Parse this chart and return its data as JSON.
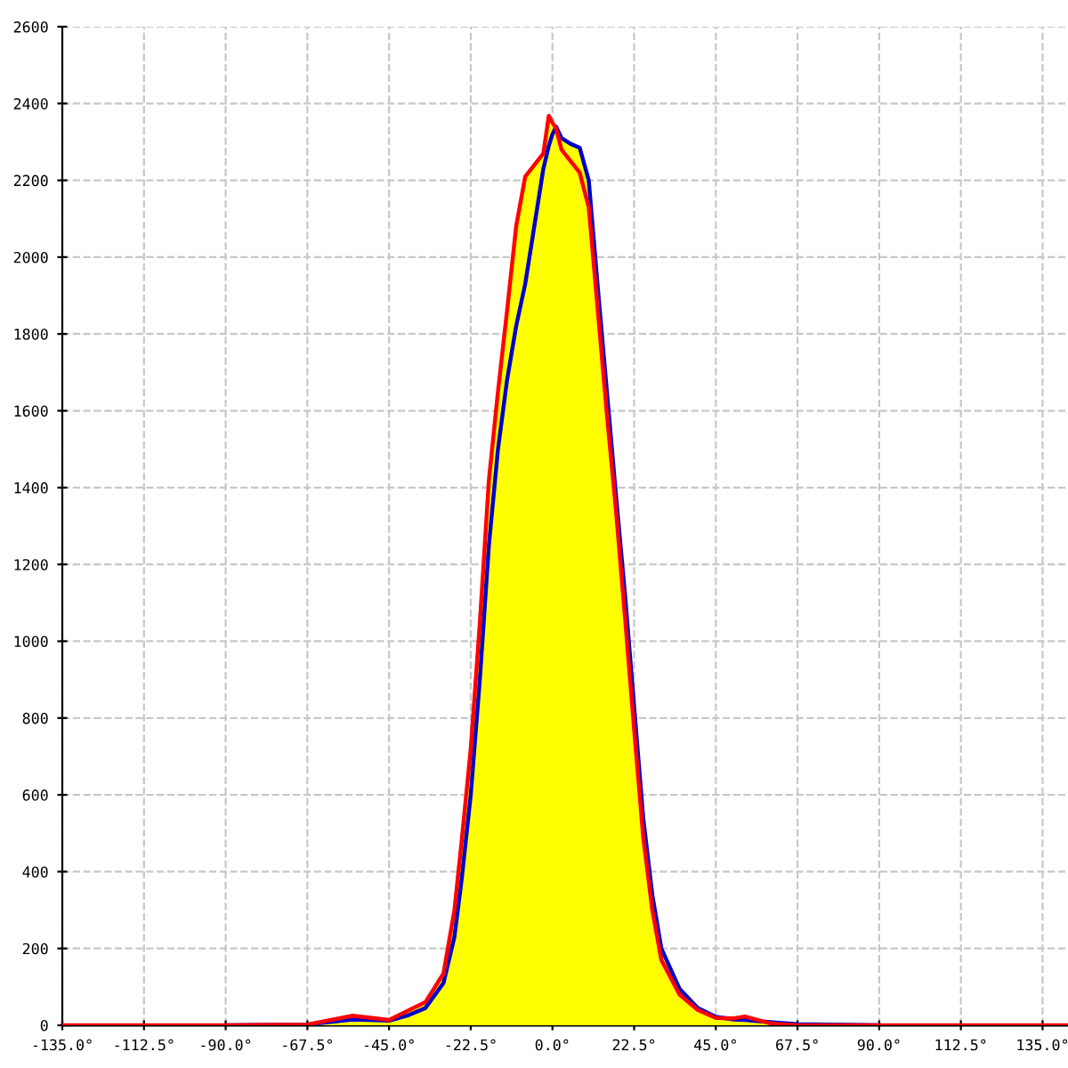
{
  "chart_data": {
    "type": "line",
    "x": [
      -90,
      -67.5,
      -55,
      -45,
      -40,
      -35,
      -30,
      -27,
      -25,
      -22.5,
      -20,
      -17.5,
      -15,
      -12.5,
      -10,
      -7.5,
      -5,
      -2.5,
      -1,
      0,
      1,
      2.5,
      5,
      7.5,
      10,
      12.5,
      15,
      17.5,
      20,
      22.5,
      25,
      27.5,
      30,
      35,
      40,
      45,
      50,
      53,
      60,
      67.5,
      90
    ],
    "series": [
      {
        "type": "area",
        "color": "#ffff00",
        "values": [
          0,
          2,
          25,
          14,
          37,
          60,
          135,
          300,
          480,
          720,
          1047,
          1420,
          1650,
          1860,
          2080,
          2210,
          2240,
          2270,
          2368,
          2350,
          2340,
          2310,
          2295,
          2285,
          2200,
          1920,
          1650,
          1380,
          1120,
          830,
          540,
          340,
          200,
          95,
          45,
          22,
          18,
          23,
          8,
          3,
          0
        ]
      },
      {
        "type": "line",
        "color": "#0000cc",
        "values": [
          0,
          2,
          15,
          12,
          25,
          45,
          110,
          230,
          380,
          600,
          900,
          1250,
          1500,
          1680,
          1820,
          1930,
          2080,
          2230,
          2290,
          2320,
          2340,
          2310,
          2295,
          2285,
          2200,
          1920,
          1650,
          1380,
          1120,
          830,
          540,
          340,
          200,
          95,
          45,
          22,
          15,
          14,
          8,
          3,
          0
        ]
      },
      {
        "type": "line",
        "color": "#ff0000",
        "x": [
          -135,
          -90,
          -67.5,
          -55,
          -45,
          -40,
          -35,
          -30,
          -27,
          -25,
          -22.5,
          -20,
          -17.5,
          -15,
          -12.5,
          -10,
          -7.5,
          -5,
          -2.5,
          -1,
          0,
          1,
          2.5,
          5,
          7.5,
          10,
          12.5,
          15,
          17.5,
          20,
          22.5,
          25,
          27.5,
          30,
          35,
          40,
          45,
          50,
          53,
          60,
          67.5,
          90,
          142
        ],
        "values": [
          0,
          0,
          2,
          25,
          14,
          37,
          60,
          135,
          300,
          480,
          720,
          1047,
          1420,
          1650,
          1860,
          2080,
          2210,
          2240,
          2270,
          2368,
          2350,
          2335,
          2280,
          2250,
          2220,
          2130,
          1860,
          1590,
          1340,
          1060,
          770,
          490,
          300,
          170,
          80,
          40,
          19,
          18,
          23,
          5,
          0,
          0,
          0
        ]
      }
    ],
    "xlim": [
      -135,
      142
    ],
    "xticks": [
      {
        "value": -135,
        "label": "-135.0°"
      },
      {
        "value": -112.5,
        "label": "-112.5°"
      },
      {
        "value": -90,
        "label": "-90.0°"
      },
      {
        "value": -67.5,
        "label": "-67.5°"
      },
      {
        "value": -45,
        "label": "-45.0°"
      },
      {
        "value": -22.5,
        "label": "-22.5°"
      },
      {
        "value": 0,
        "label": "0.0°"
      },
      {
        "value": 22.5,
        "label": "22.5°"
      },
      {
        "value": 45,
        "label": "45.0°"
      },
      {
        "value": 67.5,
        "label": "67.5°"
      },
      {
        "value": 90,
        "label": "90.0°"
      },
      {
        "value": 112.5,
        "label": "112.5°"
      },
      {
        "value": 135,
        "label": "135.0°"
      }
    ],
    "ylim": [
      0,
      2600
    ],
    "yticks": [
      0,
      200,
      400,
      600,
      800,
      1000,
      1200,
      1400,
      1600,
      1800,
      2000,
      2200,
      2400,
      2600
    ],
    "grid": true,
    "line_style": "solid"
  }
}
